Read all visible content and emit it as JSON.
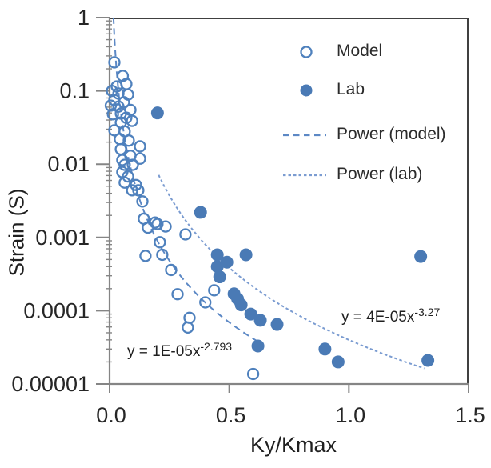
{
  "figure": {
    "background": "#ffffff",
    "colors": {
      "open_marker": "#4f81bd",
      "filled_marker": "#4a7ab5",
      "trend_model": "#5c88c5",
      "trend_lab": "#7b9cd1",
      "axis_line": "#858585",
      "plot_border": "#404040",
      "tick_text": "#262626"
    }
  },
  "chart_data": {
    "type": "scatter",
    "title": "",
    "xlabel": "Ky/Kmax",
    "ylabel": "Strain (S)",
    "grid": false,
    "legend_position": "upper-right-inside",
    "x_axis": {
      "min": 0,
      "max": 1.5,
      "tick_values": [
        0.0,
        0.5,
        1.0,
        1.5
      ],
      "tick_labels": [
        "0.0",
        "0.5",
        "1.0",
        "1.5"
      ]
    },
    "y_axis": {
      "scale": "log",
      "min": 1e-05,
      "max": 1,
      "tick_values": [
        1,
        0.1,
        0.01,
        0.001,
        0.0001,
        1e-05
      ],
      "tick_labels": [
        "1",
        "0.1",
        "0.01",
        "0.001",
        "0.0001",
        "0.00001"
      ]
    },
    "series": [
      {
        "name": "Model",
        "marker": "open-circle",
        "points": [
          [
            0.02,
            0.245
          ],
          [
            0.055,
            0.16
          ],
          [
            0.07,
            0.124
          ],
          [
            0.03,
            0.115
          ],
          [
            0.01,
            0.1
          ],
          [
            0.037,
            0.092
          ],
          [
            0.077,
            0.089
          ],
          [
            0.02,
            0.075
          ],
          [
            0.06,
            0.07
          ],
          [
            0.005,
            0.063
          ],
          [
            0.037,
            0.061
          ],
          [
            0.087,
            0.055
          ],
          [
            0.047,
            0.049
          ],
          [
            0.014,
            0.048
          ],
          [
            0.07,
            0.043
          ],
          [
            0.047,
            0.037
          ],
          [
            0.094,
            0.039
          ],
          [
            0.02,
            0.029
          ],
          [
            0.063,
            0.028
          ],
          [
            0.043,
            0.022
          ],
          [
            0.08,
            0.021
          ],
          [
            0.127,
            0.0175
          ],
          [
            0.047,
            0.016
          ],
          [
            0.087,
            0.013
          ],
          [
            0.053,
            0.0114
          ],
          [
            0.127,
            0.0119
          ],
          [
            0.063,
            0.0098
          ],
          [
            0.097,
            0.0098
          ],
          [
            0.053,
            0.0078
          ],
          [
            0.077,
            0.0068
          ],
          [
            0.063,
            0.0056
          ],
          [
            0.11,
            0.0052
          ],
          [
            0.094,
            0.0044
          ],
          [
            0.12,
            0.0044
          ],
          [
            0.137,
            0.0031
          ],
          [
            0.143,
            0.0018
          ],
          [
            0.16,
            0.00136
          ],
          [
            0.19,
            0.0016
          ],
          [
            0.2,
            0.00152
          ],
          [
            0.234,
            0.00141
          ],
          [
            0.317,
            0.0011
          ],
          [
            0.21,
            0.00086
          ],
          [
            0.15,
            0.00056
          ],
          [
            0.22,
            0.00058
          ],
          [
            0.257,
            0.00036
          ],
          [
            0.284,
            0.000168
          ],
          [
            0.437,
            0.00019
          ],
          [
            0.4,
            0.00013
          ],
          [
            0.334,
            8e-05
          ],
          [
            0.327,
            5.9e-05
          ],
          [
            0.6,
            1.37e-05
          ]
        ]
      },
      {
        "name": "Lab",
        "marker": "filled-circle",
        "points": [
          [
            0.2,
            0.05
          ],
          [
            0.38,
            0.0022
          ],
          [
            0.45,
            0.00058
          ],
          [
            0.49,
            0.00046
          ],
          [
            0.45,
            0.0004
          ],
          [
            0.46,
            0.00029
          ],
          [
            0.57,
            0.00058
          ],
          [
            0.52,
            0.00017
          ],
          [
            0.535,
            0.000145
          ],
          [
            0.55,
            0.00012
          ],
          [
            0.59,
            9e-05
          ],
          [
            0.63,
            7.4e-05
          ],
          [
            0.7,
            6.5e-05
          ],
          [
            0.62,
            3.3e-05
          ],
          [
            0.9,
            3e-05
          ],
          [
            0.955,
            2e-05
          ],
          [
            1.3,
            0.00055
          ],
          [
            1.33,
            2.1e-05
          ]
        ]
      }
    ],
    "trendlines": [
      {
        "name": "Power (model)",
        "equation": "y = 1E-05x^-2.793",
        "coefficient": 1e-05,
        "exponent": -2.793,
        "x_start": 0.0162,
        "x_end": 0.625,
        "style": "dashed"
      },
      {
        "name": "Power (lab)",
        "equation": "y = 4E-05x^-3.27",
        "coefficient": 4e-05,
        "exponent": -3.27,
        "x_start": 0.205,
        "x_end": 1.315,
        "style": "dotted"
      }
    ],
    "annotations": [
      {
        "base": "y = 1E-05x",
        "exponent": "-2.793"
      },
      {
        "base": "y = 4E-05x",
        "exponent": "-3.27"
      }
    ],
    "legend": {
      "entries": [
        {
          "label": "Model",
          "marker": "open-circle"
        },
        {
          "label": "Lab",
          "marker": "filled-circle"
        },
        {
          "label": "Power (model)",
          "marker": "dashed-line"
        },
        {
          "label": "Power (lab)",
          "marker": "dotted-line"
        }
      ]
    }
  }
}
